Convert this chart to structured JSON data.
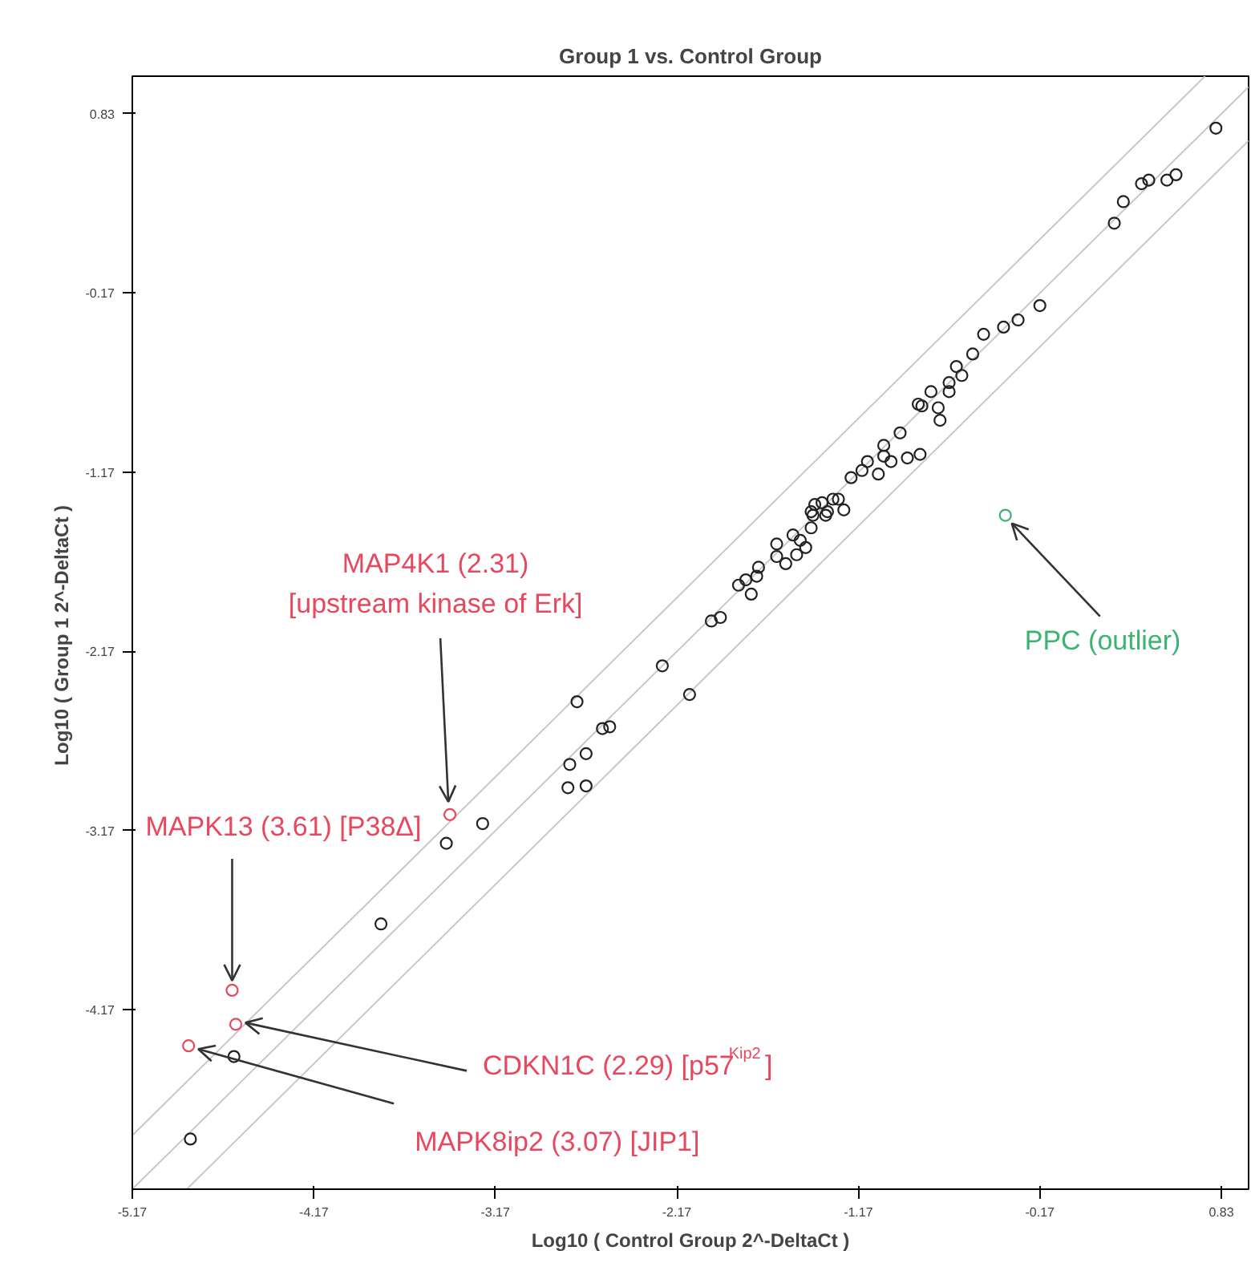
{
  "chart_data": {
    "type": "scatter",
    "title": "Group 1 vs. Control Group",
    "xlabel": "Log10 ( Control Group 2^-DeltaCt )",
    "ylabel": "Log10 ( Group 1  2^-DeltaCt )",
    "xlim": [
      -5.17,
      0.98
    ],
    "ylim": [
      -5.17,
      1.04
    ],
    "xticks": [
      -5.17,
      -4.17,
      -3.17,
      -2.17,
      -1.17,
      -0.17,
      0.83
    ],
    "yticks": [
      -4.17,
      -3.17,
      -2.17,
      -1.17,
      -0.17,
      0.83
    ],
    "grid": false,
    "marker": "circle",
    "series": [
      {
        "type": "line",
        "marker": "none",
        "color": "#c8c8c8",
        "x": [
          -5.17,
          0.74
        ],
        "values": [
          -4.87,
          1.04
        ]
      },
      {
        "type": "line",
        "marker": "none",
        "color": "#c8c8c8",
        "x": [
          -5.17,
          0.98
        ],
        "values": [
          -5.17,
          0.98
        ]
      },
      {
        "type": "line",
        "marker": "none",
        "color": "#c8c8c8",
        "x": [
          -4.87,
          0.98
        ],
        "values": [
          -5.17,
          0.68
        ]
      },
      {
        "color": "#222222",
        "x": [
          -4.85,
          -4.61,
          -3.8,
          -3.44,
          -3.24,
          -2.77,
          -2.67,
          -2.76,
          -2.67,
          -2.72,
          -2.58,
          -2.54,
          -2.25,
          -2.1,
          -1.98,
          -1.93,
          -1.83,
          -1.76,
          -1.79,
          -1.73,
          -1.72,
          -1.62,
          -1.62,
          -1.57,
          -1.53,
          -1.51,
          -1.49,
          -1.46,
          -1.43,
          -1.43,
          -1.41,
          -1.37,
          -1.34,
          -1.31,
          -1.28,
          -1.25,
          -1.21,
          -1.15,
          -1.12,
          -1.06,
          -1.03,
          -0.99,
          -0.9,
          -0.83,
          -1.42,
          -1.35,
          -1.03,
          -0.94,
          -0.84,
          -0.82,
          -0.73,
          -0.77,
          -0.72,
          -0.67,
          -0.67,
          -0.63,
          -0.6,
          -0.54,
          -0.48,
          -0.37,
          -0.29,
          -0.17,
          0.24,
          0.29,
          0.39,
          0.43,
          0.53,
          0.58,
          0.8
        ],
        "values": [
          -4.89,
          -4.43,
          -3.69,
          -3.24,
          -3.13,
          -2.93,
          -2.92,
          -2.8,
          -2.74,
          -2.45,
          -2.6,
          -2.59,
          -2.25,
          -2.41,
          -2.0,
          -1.98,
          -1.8,
          -1.85,
          -1.77,
          -1.75,
          -1.7,
          -1.57,
          -1.64,
          -1.68,
          -1.52,
          -1.63,
          -1.55,
          -1.59,
          -1.48,
          -1.39,
          -1.35,
          -1.34,
          -1.39,
          -1.32,
          -1.32,
          -1.38,
          -1.2,
          -1.16,
          -1.11,
          -1.18,
          -1.08,
          -1.11,
          -1.09,
          -1.07,
          -1.41,
          -1.41,
          -1.02,
          -0.95,
          -0.79,
          -0.8,
          -0.81,
          -0.72,
          -0.88,
          -0.72,
          -0.67,
          -0.58,
          -0.63,
          -0.51,
          -0.4,
          -0.36,
          -0.32,
          -0.24,
          0.22,
          0.34,
          0.44,
          0.46,
          0.46,
          0.49,
          0.75
        ]
      },
      {
        "color": "#e8485e",
        "x": [
          -3.42,
          -4.62,
          -4.6,
          -4.86
        ],
        "values": [
          -3.08,
          -4.06,
          -4.25,
          -4.37
        ]
      },
      {
        "color": "#3cb371",
        "x": [
          -0.36
        ],
        "values": [
          -1.41
        ]
      }
    ],
    "annotations": [
      {
        "text": "MAP4K1 (2.31)\n[upstream kinase of Erk]",
        "x": -3.42,
        "y": -3.08
      },
      {
        "text": "MAPK13 (3.61) [P38Δ]",
        "x": -4.62,
        "y": -4.06
      },
      {
        "text": "CDKN1C (2.29) [p57$^{Kip2}$]",
        "x": -4.6,
        "y": -4.25
      },
      {
        "text": "MAPK8ip2 (3.07) [JIP1]",
        "x": -4.86,
        "y": -4.37
      },
      {
        "text": "PPC (outlier)",
        "x": -0.36,
        "y": -1.41
      }
    ]
  }
}
